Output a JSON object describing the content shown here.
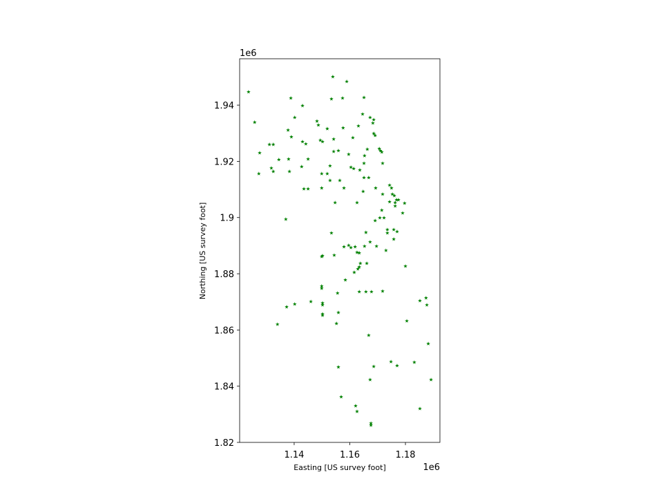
{
  "chart_data": {
    "type": "scatter",
    "xlabel": "Easting [US survey foot]",
    "ylabel": "Northing [US survey foot]",
    "x_offset_text": "1e6",
    "y_offset_text": "1e6",
    "color": "#008000",
    "marker": "star",
    "xlim": [
      1.1204,
      1.1924
    ],
    "ylim": [
      1.82,
      1.9565
    ],
    "xticks": [
      1.14,
      1.16,
      1.18
    ],
    "yticks": [
      1.82,
      1.84,
      1.86,
      1.88,
      1.9,
      1.92,
      1.94
    ],
    "x": [
      1.1236,
      1.1539,
      1.1589,
      1.1388,
      1.1534,
      1.1574,
      1.1651,
      1.143,
      1.1258,
      1.1402,
      1.1646,
      1.1673,
      1.1686,
      1.1683,
      1.1482,
      1.1487,
      1.1631,
      1.1576,
      1.1519,
      1.1378,
      1.1686,
      1.1691,
      1.139,
      1.1611,
      1.1542,
      1.1494,
      1.1502,
      1.143,
      1.1442,
      1.1311,
      1.1325,
      1.1276,
      1.1706,
      1.171,
      1.1715,
      1.1663,
      1.1559,
      1.1542,
      1.1596,
      1.1653,
      1.145,
      1.1345,
      1.138,
      1.1718,
      1.1651,
      1.1427,
      1.1529,
      1.1604,
      1.1614,
      1.1636,
      1.1318,
      1.1325,
      1.1273,
      1.1383,
      1.1499,
      1.1519,
      1.1651,
      1.1668,
      1.1529,
      1.1564,
      1.1435,
      1.145,
      1.1499,
      1.1579,
      1.1648,
      1.1693,
      1.1743,
      1.175,
      1.1718,
      1.1753,
      1.176,
      1.1768,
      1.1775,
      1.1763,
      1.1743,
      1.1797,
      1.1763,
      1.1547,
      1.1626,
      1.1715,
      1.179,
      1.137,
      1.1708,
      1.1723,
      1.1691,
      1.1735,
      1.1735,
      1.1534,
      1.1658,
      1.1758,
      1.177,
      1.1758,
      1.1673,
      1.1696,
      1.1596,
      1.1604,
      1.1619,
      1.1653,
      1.1579,
      1.173,
      1.1626,
      1.1634,
      1.1502,
      1.1499,
      1.1544,
      1.1638,
      1.1661,
      1.1634,
      1.1629,
      1.1616,
      1.18,
      1.1584,
      1.1499,
      1.1499,
      1.1634,
      1.1658,
      1.1678,
      1.1718,
      1.1556,
      1.146,
      1.1402,
      1.1373,
      1.1502,
      1.1502,
      1.1852,
      1.1874,
      1.1877,
      1.1559,
      1.1502,
      1.1502,
      1.1805,
      1.134,
      1.1552,
      1.1668,
      1.1882,
      1.1748,
      1.1832,
      1.177,
      1.1686,
      1.1559,
      1.1892,
      1.1673,
      1.1569,
      1.1621,
      1.1626,
      1.1852,
      1.1676,
      1.1676
    ],
    "y": [
      1.9447,
      1.9501,
      1.9484,
      1.9425,
      1.9422,
      1.9425,
      1.9427,
      1.9398,
      1.9339,
      1.9356,
      1.9368,
      1.9356,
      1.9348,
      1.9336,
      1.9343,
      1.9329,
      1.9326,
      1.9319,
      1.9316,
      1.9311,
      1.9299,
      1.9292,
      1.9287,
      1.9284,
      1.9279,
      1.9275,
      1.927,
      1.927,
      1.9262,
      1.926,
      1.926,
      1.923,
      1.9245,
      1.9238,
      1.9233,
      1.9243,
      1.9238,
      1.9235,
      1.9225,
      1.922,
      1.9208,
      1.9206,
      1.9208,
      1.9193,
      1.9193,
      1.9181,
      1.9184,
      1.9179,
      1.9174,
      1.9169,
      1.9176,
      1.9164,
      1.9156,
      1.9164,
      1.9156,
      1.9156,
      1.9142,
      1.9142,
      1.9132,
      1.9132,
      1.9102,
      1.9102,
      1.9105,
      1.9105,
      1.9093,
      1.9105,
      1.9115,
      1.9105,
      1.9083,
      1.9083,
      1.9078,
      1.9063,
      1.9063,
      1.9053,
      1.9056,
      1.9051,
      1.9041,
      1.9053,
      1.9053,
      1.9026,
      1.9016,
      1.8994,
      1.8999,
      1.8999,
      1.8989,
      1.8957,
      1.8945,
      1.8945,
      1.8947,
      1.8957,
      1.895,
      1.8923,
      1.8913,
      1.8898,
      1.8901,
      1.8893,
      1.8896,
      1.8898,
      1.8896,
      1.8883,
      1.8876,
      1.8874,
      1.8864,
      1.8861,
      1.8866,
      1.8837,
      1.8837,
      1.8824,
      1.8817,
      1.8805,
      1.8827,
      1.8778,
      1.8756,
      1.8748,
      1.8736,
      1.8736,
      1.8736,
      1.8738,
      1.8731,
      1.8701,
      1.8692,
      1.8682,
      1.8696,
      1.8689,
      1.8704,
      1.8714,
      1.8689,
      1.8662,
      1.8657,
      1.8652,
      1.8632,
      1.862,
      1.8623,
      1.8581,
      1.8551,
      1.8487,
      1.8485,
      1.8473,
      1.847,
      1.8468,
      1.8423,
      1.8423,
      1.8362,
      1.833,
      1.831,
      1.832,
      1.8268,
      1.8261
    ]
  }
}
